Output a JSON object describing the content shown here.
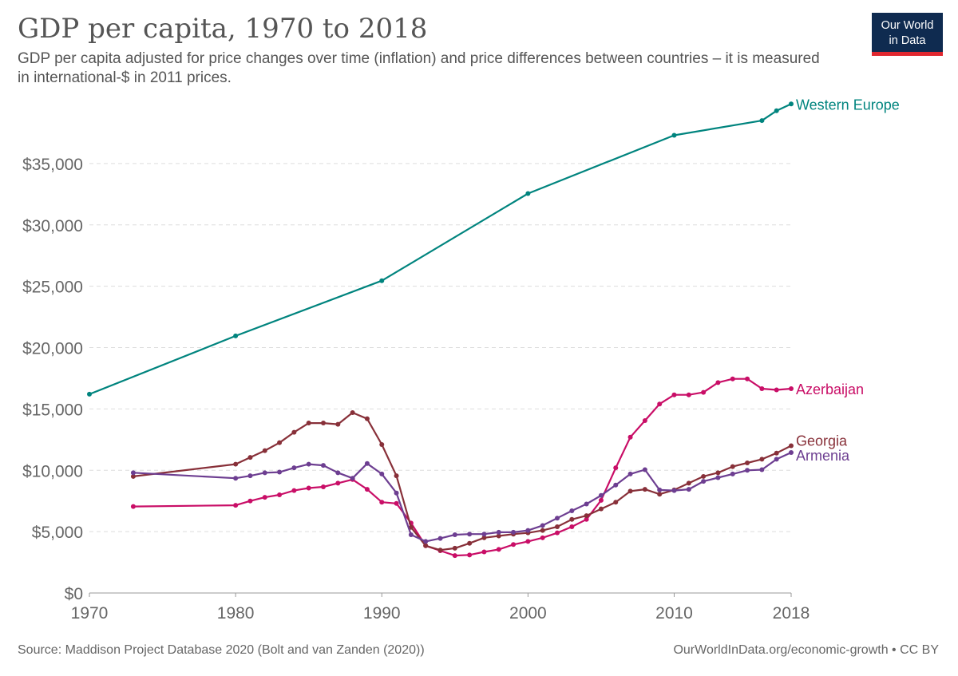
{
  "header": {
    "title": "GDP per capita, 1970 to 2018",
    "subtitle": "GDP per capita adjusted for price changes over time (inflation) and price differences between countries – it is measured in international-$ in 2011 prices."
  },
  "logo": {
    "line1": "Our World",
    "line2": "in Data",
    "bg": "#0f2b50",
    "bar": "#e0272f"
  },
  "footer": {
    "source": "Source: Maddison Project Database 2020 (Bolt and van Zanden (2020))",
    "credit": "OurWorldInData.org/economic-growth • CC BY"
  },
  "chart_data": {
    "type": "line",
    "xlim": [
      1970,
      2018
    ],
    "ylim": [
      0,
      40000
    ],
    "grid": true,
    "x_ticks": [
      {
        "value": 1970,
        "label": "1970"
      },
      {
        "value": 1980,
        "label": "1980"
      },
      {
        "value": 1990,
        "label": "1990"
      },
      {
        "value": 2000,
        "label": "2000"
      },
      {
        "value": 2010,
        "label": "2010"
      },
      {
        "value": 2018,
        "label": "2018"
      }
    ],
    "y_ticks": [
      {
        "value": 0,
        "label": "$0"
      },
      {
        "value": 5000,
        "label": "$5,000"
      },
      {
        "value": 10000,
        "label": "$10,000"
      },
      {
        "value": 15000,
        "label": "$15,000"
      },
      {
        "value": 20000,
        "label": "$20,000"
      },
      {
        "value": 25000,
        "label": "$25,000"
      },
      {
        "value": 30000,
        "label": "$30,000"
      },
      {
        "value": 35000,
        "label": "$35,000"
      }
    ],
    "series": [
      {
        "name": "Western Europe",
        "color": "#00847e",
        "label_offset": 0,
        "points": [
          [
            1970,
            16200
          ],
          [
            1980,
            20950
          ],
          [
            1990,
            25450
          ],
          [
            2000,
            32550
          ],
          [
            2010,
            37300
          ],
          [
            2016,
            38500
          ],
          [
            2017,
            39300
          ],
          [
            2018,
            39850
          ]
        ]
      },
      {
        "name": "Azerbaijan",
        "color": "#c90e67",
        "label_offset": 0,
        "points": [
          [
            1973,
            7050
          ],
          [
            1980,
            7150
          ],
          [
            1981,
            7500
          ],
          [
            1982,
            7800
          ],
          [
            1983,
            8000
          ],
          [
            1984,
            8350
          ],
          [
            1985,
            8550
          ],
          [
            1986,
            8650
          ],
          [
            1987,
            8950
          ],
          [
            1988,
            9250
          ],
          [
            1989,
            8450
          ],
          [
            1990,
            7400
          ],
          [
            1991,
            7300
          ],
          [
            1992,
            5700
          ],
          [
            1993,
            3850
          ],
          [
            1994,
            3450
          ],
          [
            1995,
            3050
          ],
          [
            1996,
            3100
          ],
          [
            1997,
            3350
          ],
          [
            1998,
            3550
          ],
          [
            1999,
            3950
          ],
          [
            2000,
            4200
          ],
          [
            2001,
            4500
          ],
          [
            2002,
            4900
          ],
          [
            2003,
            5400
          ],
          [
            2004,
            6000
          ],
          [
            2005,
            7550
          ],
          [
            2006,
            10200
          ],
          [
            2007,
            12700
          ],
          [
            2008,
            14050
          ],
          [
            2009,
            15400
          ],
          [
            2010,
            16150
          ],
          [
            2011,
            16150
          ],
          [
            2012,
            16350
          ],
          [
            2013,
            17150
          ],
          [
            2014,
            17450
          ],
          [
            2015,
            17450
          ],
          [
            2016,
            16650
          ],
          [
            2017,
            16550
          ],
          [
            2018,
            16650
          ]
        ]
      },
      {
        "name": "Georgia",
        "color": "#883039",
        "label_offset": -7,
        "points": [
          [
            1973,
            9500
          ],
          [
            1980,
            10500
          ],
          [
            1981,
            11050
          ],
          [
            1982,
            11600
          ],
          [
            1983,
            12250
          ],
          [
            1984,
            13100
          ],
          [
            1985,
            13850
          ],
          [
            1986,
            13850
          ],
          [
            1987,
            13750
          ],
          [
            1988,
            14700
          ],
          [
            1989,
            14200
          ],
          [
            1990,
            12100
          ],
          [
            1991,
            9550
          ],
          [
            1992,
            5350
          ],
          [
            1993,
            3850
          ],
          [
            1994,
            3500
          ],
          [
            1995,
            3650
          ],
          [
            1996,
            4050
          ],
          [
            1997,
            4500
          ],
          [
            1998,
            4650
          ],
          [
            1999,
            4800
          ],
          [
            2000,
            4900
          ],
          [
            2001,
            5100
          ],
          [
            2002,
            5400
          ],
          [
            2003,
            6000
          ],
          [
            2004,
            6300
          ],
          [
            2005,
            6850
          ],
          [
            2006,
            7400
          ],
          [
            2007,
            8300
          ],
          [
            2008,
            8450
          ],
          [
            2009,
            8050
          ],
          [
            2010,
            8400
          ],
          [
            2011,
            8950
          ],
          [
            2012,
            9500
          ],
          [
            2013,
            9800
          ],
          [
            2014,
            10300
          ],
          [
            2015,
            10600
          ],
          [
            2016,
            10900
          ],
          [
            2017,
            11400
          ],
          [
            2018,
            12000
          ]
        ]
      },
      {
        "name": "Armenia",
        "color": "#6d3e91",
        "label_offset": 3,
        "points": [
          [
            1973,
            9800
          ],
          [
            1980,
            9350
          ],
          [
            1981,
            9550
          ],
          [
            1982,
            9800
          ],
          [
            1983,
            9850
          ],
          [
            1984,
            10200
          ],
          [
            1985,
            10500
          ],
          [
            1986,
            10400
          ],
          [
            1987,
            9800
          ],
          [
            1988,
            9350
          ],
          [
            1989,
            10550
          ],
          [
            1990,
            9700
          ],
          [
            1991,
            8150
          ],
          [
            1992,
            4750
          ],
          [
            1993,
            4200
          ],
          [
            1994,
            4450
          ],
          [
            1995,
            4750
          ],
          [
            1996,
            4800
          ],
          [
            1997,
            4800
          ],
          [
            1998,
            4950
          ],
          [
            1999,
            4950
          ],
          [
            2000,
            5100
          ],
          [
            2001,
            5500
          ],
          [
            2002,
            6100
          ],
          [
            2003,
            6700
          ],
          [
            2004,
            7250
          ],
          [
            2005,
            7950
          ],
          [
            2006,
            8800
          ],
          [
            2007,
            9700
          ],
          [
            2008,
            10050
          ],
          [
            2009,
            8400
          ],
          [
            2010,
            8350
          ],
          [
            2011,
            8450
          ],
          [
            2012,
            9100
          ],
          [
            2013,
            9400
          ],
          [
            2014,
            9700
          ],
          [
            2015,
            10000
          ],
          [
            2016,
            10050
          ],
          [
            2017,
            10900
          ],
          [
            2018,
            11450
          ]
        ]
      }
    ]
  }
}
